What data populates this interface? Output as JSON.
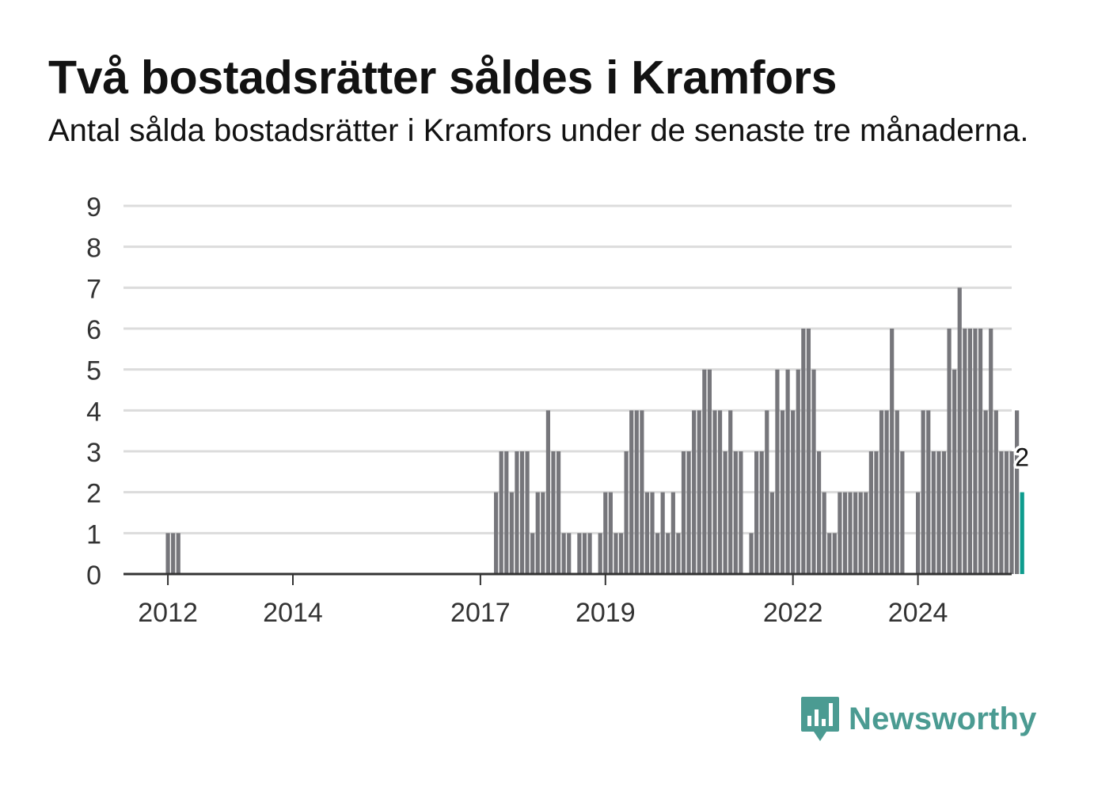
{
  "title": "Två bostadsrätter såldes i Kramfors",
  "subtitle": "Antal sålda bostadsrätter i Kramfors under de senaste tre månaderna.",
  "brand": {
    "name": "Newsworthy",
    "icon": "newsworthy-bar-chart-icon",
    "color": "#4b9b92"
  },
  "colors": {
    "bar": "#76767b",
    "highlight": "#0e9c8e",
    "grid": "#dcdcdc",
    "axis": "#333333",
    "text": "#333333"
  },
  "chart_data": {
    "type": "bar",
    "x_unit": "month",
    "start": "2011-12",
    "values": [
      0,
      1,
      1,
      1,
      0,
      0,
      0,
      0,
      0,
      0,
      0,
      0,
      0,
      0,
      0,
      0,
      0,
      0,
      0,
      0,
      0,
      0,
      0,
      0,
      0,
      0,
      0,
      0,
      0,
      0,
      0,
      0,
      0,
      0,
      0,
      0,
      0,
      0,
      0,
      0,
      0,
      0,
      0,
      0,
      0,
      0,
      0,
      0,
      0,
      0,
      0,
      0,
      0,
      0,
      0,
      0,
      0,
      0,
      0,
      0,
      0,
      0,
      0,
      0,
      2,
      3,
      3,
      2,
      3,
      3,
      3,
      1,
      2,
      2,
      4,
      3,
      3,
      1,
      1,
      0,
      1,
      1,
      1,
      0,
      1,
      2,
      2,
      1,
      1,
      3,
      4,
      4,
      4,
      2,
      2,
      1,
      2,
      1,
      2,
      1,
      3,
      3,
      4,
      4,
      5,
      5,
      4,
      4,
      3,
      4,
      3,
      3,
      0,
      1,
      3,
      3,
      4,
      2,
      5,
      4,
      5,
      4,
      5,
      6,
      6,
      5,
      3,
      2,
      1,
      1,
      2,
      2,
      2,
      2,
      2,
      2,
      3,
      3,
      4,
      4,
      6,
      4,
      3,
      0,
      0,
      2,
      4,
      4,
      3,
      3,
      3,
      6,
      5,
      7,
      6,
      6,
      6,
      6,
      4,
      6,
      4,
      3,
      3,
      3,
      4,
      2
    ],
    "highlight": {
      "index": 165,
      "value": 2,
      "label": "2"
    },
    "x_ticks": [
      {
        "label": "2012",
        "index": 1
      },
      {
        "label": "2014",
        "index": 25
      },
      {
        "label": "2017",
        "index": 61
      },
      {
        "label": "2019",
        "index": 85
      },
      {
        "label": "2022",
        "index": 121
      },
      {
        "label": "2024",
        "index": 145
      }
    ],
    "ylim": [
      0,
      9
    ],
    "yticks": [
      0,
      1,
      2,
      3,
      4,
      5,
      6,
      7,
      8,
      9
    ],
    "grid": true,
    "legend": "none"
  }
}
